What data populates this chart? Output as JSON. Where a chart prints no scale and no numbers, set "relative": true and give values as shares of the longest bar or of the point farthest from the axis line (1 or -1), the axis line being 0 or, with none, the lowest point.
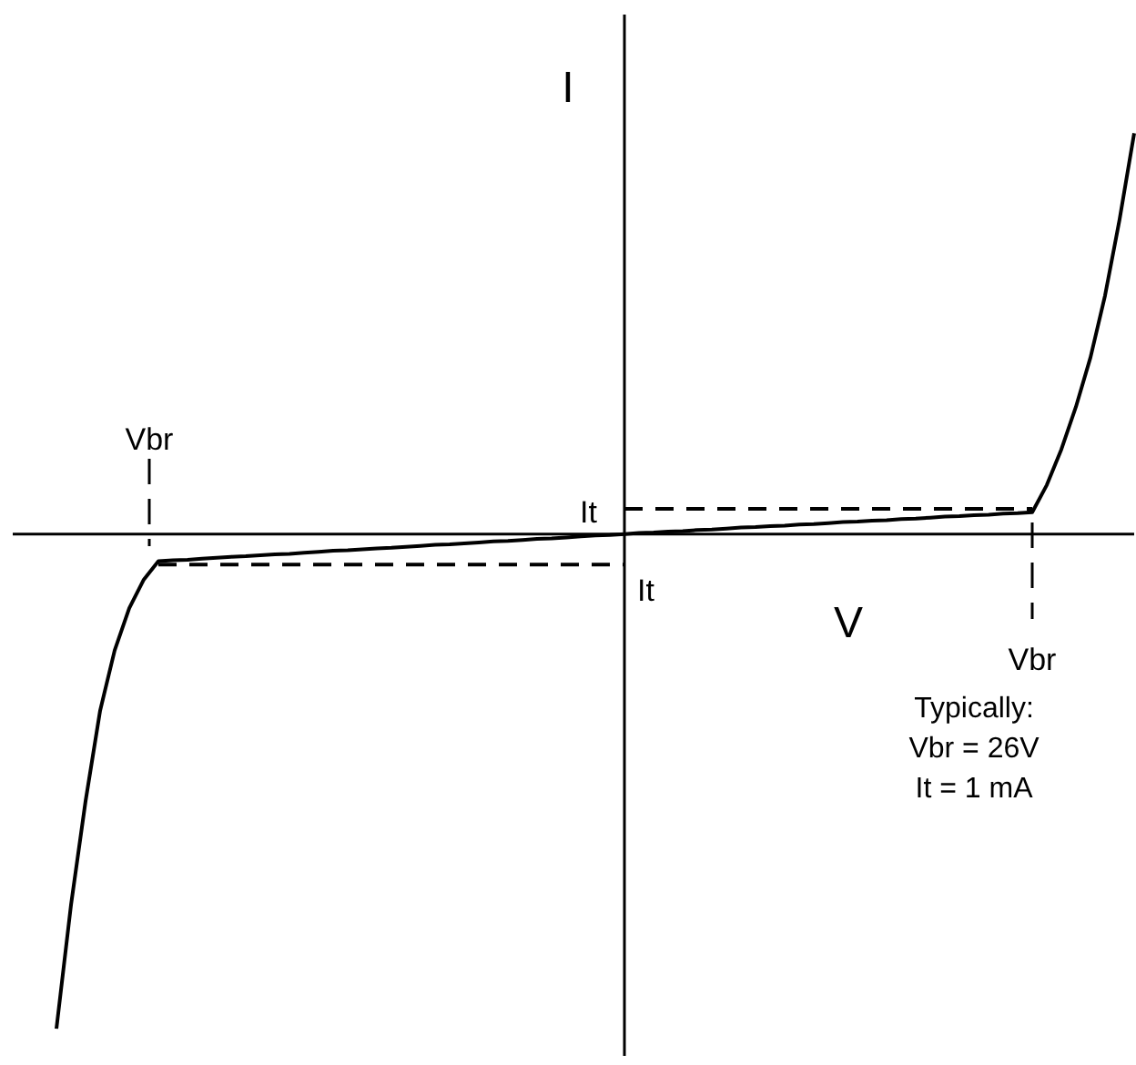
{
  "chart_data": {
    "type": "line",
    "relative": true,
    "xlabel": "V",
    "ylabel": "I",
    "marker": "none",
    "categories": [
      null,
      null,
      null,
      null,
      null,
      null,
      null,
      null,
      null,
      null,
      null,
      null,
      null,
      null,
      null,
      null,
      null,
      null,
      null,
      null,
      null,
      null,
      null,
      null,
      null,
      null,
      null,
      null,
      null,
      null,
      null,
      null,
      null,
      null,
      null,
      null,
      null,
      null,
      null,
      null,
      null,
      null,
      null,
      null,
      null,
      null,
      null,
      null,
      null,
      null,
      null,
      null,
      null,
      null,
      null,
      null,
      null,
      null,
      null,
      null,
      null,
      null,
      null,
      null,
      null,
      null,
      null,
      null,
      null,
      null,
      null,
      null,
      null,
      null,
      null,
      null,
      null,
      null
    ],
    "series": [
      {
        "color": "#000000",
        "line_style": "solid",
        "values": [
          null,
          null,
          null,
          -1,
          -0.75,
          -0.54,
          -0.357,
          -0.235,
          -0.15,
          -0.092,
          -0.055,
          -0.053,
          -0.052,
          -0.05,
          -0.048,
          -0.046,
          -0.045,
          -0.043,
          -0.041,
          -0.04,
          -0.038,
          -0.036,
          -0.034,
          -0.033,
          -0.031,
          -0.029,
          -0.028,
          -0.026,
          -0.024,
          -0.022,
          -0.021,
          -0.019,
          -0.017,
          -0.015,
          -0.014,
          -0.012,
          -0.01,
          -0.009,
          -0.007,
          -0.005,
          -0.003,
          -0.002,
          0,
          0.002,
          0.003,
          0.005,
          0.006,
          0.008,
          0.009,
          0.011,
          0.013,
          0.014,
          0.016,
          0.017,
          0.019,
          0.02,
          0.022,
          0.024,
          0.025,
          0.027,
          0.028,
          0.03,
          0.031,
          0.033,
          0.035,
          0.036,
          0.038,
          0.039,
          0.041,
          0.042,
          0.044,
          0.099,
          0.171,
          0.257,
          0.357,
          0.482,
          0.636,
          0.81
        ]
      },
      {
        "color": "#000000",
        "line_style": "dashed",
        "values": [
          null,
          null,
          null,
          null,
          null,
          null,
          null,
          null,
          null,
          null,
          -0.062,
          -0.062,
          -0.062,
          -0.062,
          -0.062,
          -0.062,
          -0.062,
          -0.062,
          -0.062,
          -0.062,
          -0.062,
          -0.062,
          -0.062,
          -0.062,
          -0.062,
          -0.062,
          -0.062,
          -0.062,
          -0.062,
          -0.062,
          -0.062,
          -0.062,
          -0.062,
          -0.062,
          -0.062,
          -0.062,
          -0.062,
          -0.062,
          -0.062,
          -0.062,
          -0.062,
          -0.062,
          -0.062,
          null,
          null,
          null,
          null,
          null,
          null,
          null,
          null,
          null,
          null,
          null,
          null,
          null,
          null,
          null,
          null,
          null,
          null,
          null,
          null,
          null,
          null,
          null,
          null,
          null,
          null,
          null,
          null,
          null,
          null,
          null,
          null,
          null,
          null,
          null
        ]
      },
      {
        "color": "#000000",
        "line_style": "dashed",
        "values": [
          null,
          null,
          null,
          null,
          null,
          null,
          null,
          null,
          null,
          null,
          null,
          null,
          null,
          null,
          null,
          null,
          null,
          null,
          null,
          null,
          null,
          null,
          null,
          null,
          null,
          null,
          null,
          null,
          null,
          null,
          null,
          null,
          null,
          null,
          null,
          null,
          null,
          null,
          null,
          null,
          null,
          null,
          0.051,
          0.051,
          0.051,
          0.051,
          0.051,
          0.051,
          0.051,
          0.051,
          0.051,
          0.051,
          0.051,
          0.051,
          0.051,
          0.051,
          0.051,
          0.051,
          0.051,
          0.051,
          0.051,
          0.051,
          0.051,
          0.051,
          0.051,
          0.051,
          0.051,
          0.051,
          0.051,
          0.051,
          0.051,
          null,
          null,
          null,
          null,
          null,
          null,
          null
        ]
      }
    ],
    "annotations": [
      "Vbr",
      "Vbr",
      "It",
      "It",
      "Typically:\nVbr = 26V\nIt = 1 mA"
    ]
  }
}
